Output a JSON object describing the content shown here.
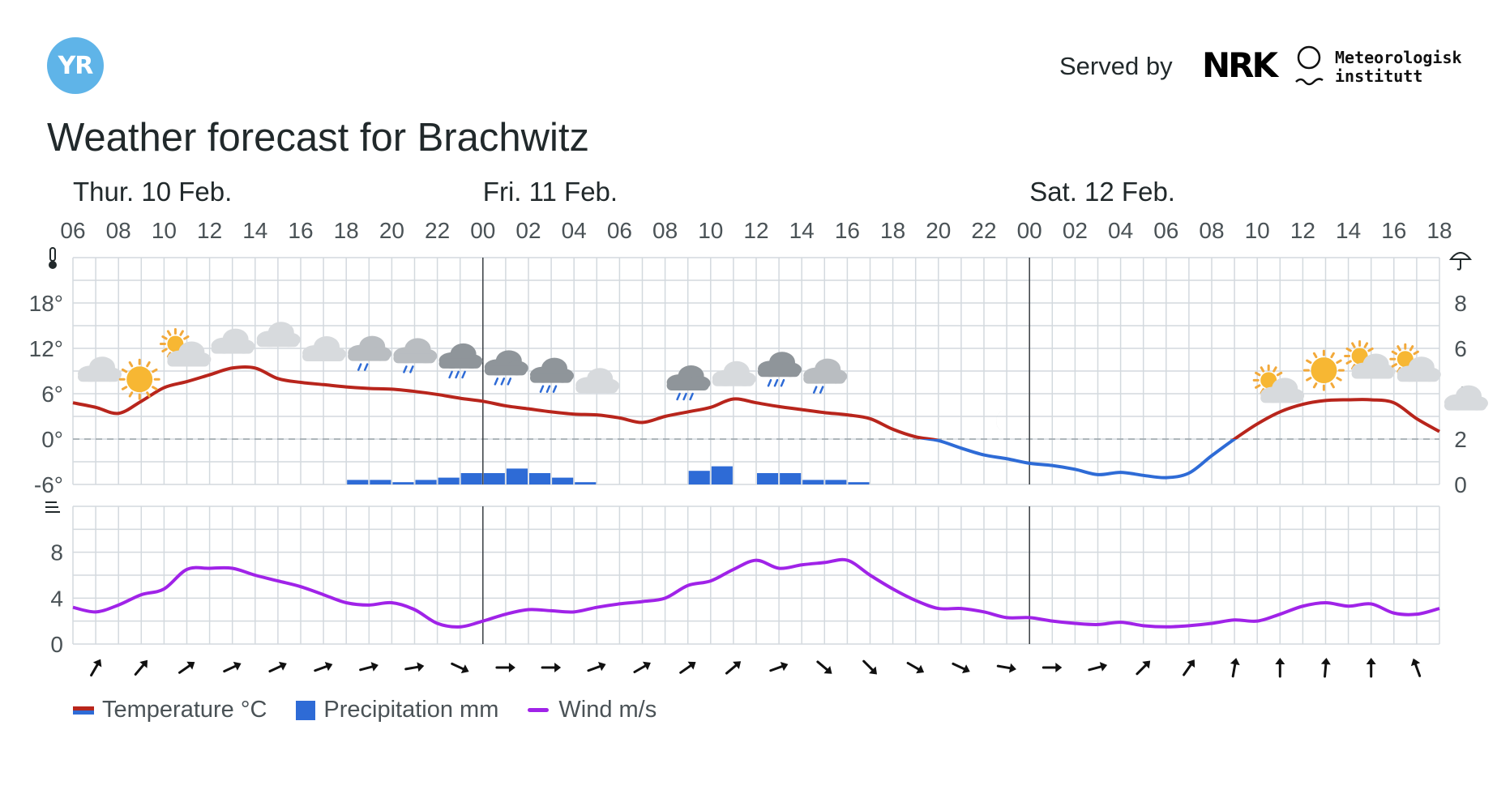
{
  "header": {
    "logo_text": "YR",
    "served_by": "Served by",
    "nrk_logo_text": "NRK",
    "met_name_line1": "Meteorologisk",
    "met_name_line2": "institutt"
  },
  "title": "Weather forecast for Brachwitz",
  "colors": {
    "temp_warm": "#b8251c",
    "temp_cold": "#2e6bd6",
    "precipitation": "#2e6bd6",
    "wind": "#a023e8",
    "grid": "#d3d9de",
    "day_divider": "#3a3f44"
  },
  "legend": {
    "temperature": "Temperature °C",
    "precipitation": "Precipitation mm",
    "wind": "Wind m/s"
  },
  "chart_data": {
    "type": "line",
    "days": [
      "Thur. 10 Feb.",
      "Fri. 11 Feb.",
      "Sat. 12 Feb."
    ],
    "hour_ticks": [
      "06",
      "08",
      "10",
      "12",
      "14",
      "16",
      "18",
      "20",
      "22",
      "00",
      "02",
      "04",
      "06",
      "08",
      "10",
      "12",
      "14",
      "16",
      "18",
      "20",
      "22",
      "00",
      "02",
      "04",
      "06",
      "08",
      "10",
      "12",
      "14",
      "16",
      "18"
    ],
    "hours_from_start": [
      0,
      1,
      2,
      3,
      4,
      5,
      6,
      7,
      8,
      9,
      10,
      11,
      12,
      13,
      14,
      15,
      16,
      17,
      18,
      19,
      20,
      21,
      22,
      23,
      24,
      25,
      26,
      27,
      28,
      29,
      30,
      31,
      32,
      33,
      34,
      35,
      36,
      37,
      38,
      39,
      40,
      41,
      42,
      43,
      44,
      45,
      46,
      47,
      48,
      49,
      50,
      51,
      52,
      53,
      54,
      55,
      56,
      57,
      58,
      59,
      60
    ],
    "temperature": {
      "name": "Temperature °C",
      "ylim": [
        -6,
        24
      ],
      "ticks": [
        "-6°",
        "0°",
        "6°",
        "12°",
        "18°"
      ],
      "values": [
        4.8,
        4.2,
        3.4,
        5.0,
        6.8,
        7.6,
        8.5,
        9.4,
        9.4,
        8.0,
        7.5,
        7.2,
        6.9,
        6.7,
        6.6,
        6.3,
        5.9,
        5.4,
        5.0,
        4.4,
        4.0,
        3.6,
        3.3,
        3.2,
        2.8,
        2.2,
        3.0,
        3.6,
        4.2,
        5.3,
        4.8,
        4.3,
        3.9,
        3.5,
        3.2,
        2.7,
        1.3,
        0.3,
        -0.2,
        -1.2,
        -2.1,
        -2.6,
        -3.2,
        -3.5,
        -4.0,
        -4.7,
        -4.4,
        -4.8,
        -5.1,
        -4.5,
        -2.2,
        0.0,
        2.0,
        3.6,
        4.6,
        5.1,
        5.2,
        5.2,
        4.8,
        2.7,
        1.0
      ]
    },
    "precipitation": {
      "name": "Precipitation mm",
      "ylim": [
        0,
        10
      ],
      "ticks": [
        "0",
        "2",
        "4",
        "6",
        "8"
      ],
      "bars": [
        {
          "hour": 12,
          "value": 0.2
        },
        {
          "hour": 13,
          "value": 0.2
        },
        {
          "hour": 14,
          "value": 0.1
        },
        {
          "hour": 15,
          "value": 0.2
        },
        {
          "hour": 16,
          "value": 0.3
        },
        {
          "hour": 17,
          "value": 0.5
        },
        {
          "hour": 18,
          "value": 0.5
        },
        {
          "hour": 19,
          "value": 0.7
        },
        {
          "hour": 20,
          "value": 0.5
        },
        {
          "hour": 21,
          "value": 0.3
        },
        {
          "hour": 22,
          "value": 0.1
        },
        {
          "hour": 27,
          "value": 0.6
        },
        {
          "hour": 28,
          "value": 0.8
        },
        {
          "hour": 30,
          "value": 0.5
        },
        {
          "hour": 31,
          "value": 0.5
        },
        {
          "hour": 32,
          "value": 0.2
        },
        {
          "hour": 33,
          "value": 0.2
        },
        {
          "hour": 34,
          "value": 0.1
        }
      ]
    },
    "wind": {
      "name": "Wind m/s",
      "ylim": [
        0,
        12
      ],
      "ticks": [
        "0",
        "4",
        "8"
      ],
      "values": [
        3.2,
        2.8,
        3.4,
        4.3,
        4.8,
        6.5,
        6.6,
        6.6,
        6.0,
        5.5,
        5.0,
        4.3,
        3.6,
        3.4,
        3.6,
        3.0,
        1.8,
        1.5,
        2.0,
        2.6,
        3.0,
        2.9,
        2.8,
        3.2,
        3.5,
        3.7,
        4.0,
        5.1,
        5.5,
        6.5,
        7.3,
        6.6,
        6.9,
        7.1,
        7.3,
        6.0,
        4.8,
        3.8,
        3.1,
        3.1,
        2.8,
        2.3,
        2.3,
        2.0,
        1.8,
        1.7,
        1.9,
        1.6,
        1.5,
        1.6,
        1.8,
        2.1,
        2.0,
        2.6,
        3.3,
        3.6,
        3.3,
        3.5,
        2.7,
        2.6,
        3.1
      ]
    },
    "weather_icons": {
      "hours": [
        0,
        2,
        4,
        6,
        8,
        10,
        12,
        14,
        16,
        18,
        20,
        22,
        24,
        26,
        28,
        30,
        32,
        34,
        36,
        38,
        40,
        42,
        44,
        46,
        48,
        50,
        52,
        54,
        56,
        58,
        60
      ],
      "symbols": [
        "partlycloudy-night",
        "sun",
        "partlycloudy-day",
        "cloudy",
        "cloudy",
        "cloudy",
        "lightrain",
        "lightrain",
        "rain",
        "rain",
        "rain",
        "cloudy",
        "moon",
        "rain",
        "cloudy",
        "rain",
        "lightrain",
        "moon",
        "moon",
        "moon",
        "moon",
        "moon",
        "moon",
        "moon",
        "moon",
        "moon",
        "partlycloudy-day",
        "sun",
        "partlycloudy-day",
        "partlycloudy-day",
        "partlycloudy-night"
      ]
    },
    "wind_direction": {
      "hours": [
        1,
        3,
        5,
        7,
        9,
        11,
        13,
        15,
        17,
        19,
        21,
        23,
        25,
        27,
        29,
        31,
        33,
        35,
        37,
        39,
        41,
        43,
        45,
        47,
        49,
        51,
        53,
        55,
        57,
        59
      ],
      "to_degrees": [
        30,
        40,
        55,
        65,
        65,
        70,
        75,
        80,
        115,
        90,
        90,
        70,
        60,
        55,
        50,
        70,
        130,
        135,
        120,
        115,
        100,
        90,
        75,
        45,
        35,
        10,
        0,
        5,
        0,
        340
      ]
    },
    "grid": true
  }
}
